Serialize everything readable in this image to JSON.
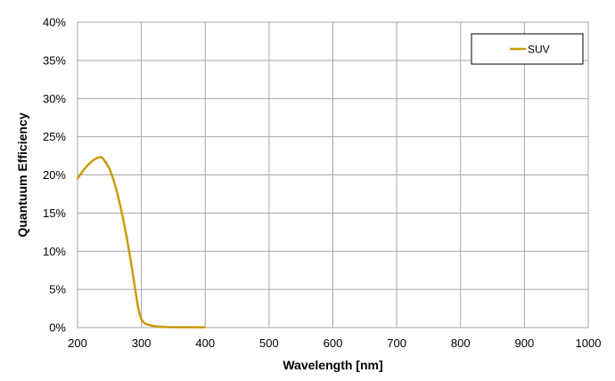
{
  "chart_data": {
    "type": "line",
    "title": "",
    "xlabel": "Wavelength [nm]",
    "ylabel": "Quantuum Efficiency",
    "xlim": [
      200,
      1000
    ],
    "ylim": [
      0,
      0.4
    ],
    "x_ticks": [
      "200",
      "300",
      "400",
      "500",
      "600",
      "700",
      "800",
      "900",
      "1000"
    ],
    "y_ticks": [
      "0%",
      "5%",
      "10%",
      "15%",
      "20%",
      "25%",
      "30%",
      "35%",
      "40%"
    ],
    "grid": true,
    "legend_position": "top-right",
    "series": [
      {
        "name": "SUV",
        "color": "#C89B0E",
        "x": [
          200,
          210,
          220,
          230,
          236,
          240,
          250,
          260,
          270,
          280,
          290,
          295,
          300,
          305,
          310,
          320,
          330,
          350,
          400
        ],
        "y": [
          0.195,
          0.207,
          0.216,
          0.222,
          0.223,
          0.221,
          0.208,
          0.183,
          0.148,
          0.104,
          0.052,
          0.026,
          0.011,
          0.006,
          0.004,
          0.002,
          0.001,
          0.0005,
          0.0003
        ]
      }
    ]
  }
}
